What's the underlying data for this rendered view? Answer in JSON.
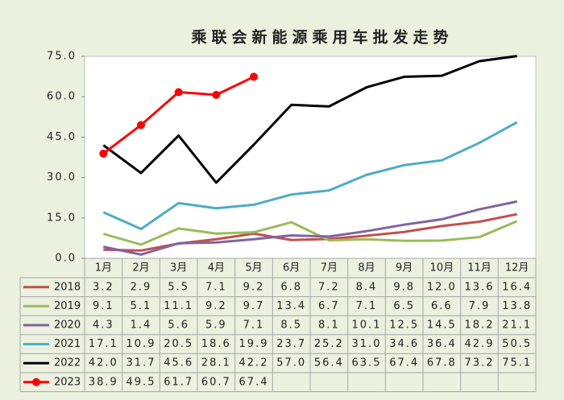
{
  "chart_data": {
    "type": "line",
    "title": "乘联会新能源乘用车批发走势",
    "categories": [
      "1月",
      "2月",
      "3月",
      "4月",
      "5月",
      "6月",
      "7月",
      "8月",
      "9月",
      "10月",
      "11月",
      "12月"
    ],
    "ylim": [
      0,
      75
    ],
    "yticks": [
      {
        "value": 0,
        "label": "0.0"
      },
      {
        "value": 15,
        "label": "15.0"
      },
      {
        "value": 30,
        "label": "30.0"
      },
      {
        "value": 45,
        "label": "45.0"
      },
      {
        "value": 60,
        "label": "60.0"
      },
      {
        "value": 75,
        "label": "75.0"
      }
    ],
    "series": [
      {
        "name": "2018",
        "color": "#c0504d",
        "values": [
          3.2,
          2.9,
          5.5,
          7.1,
          9.2,
          6.8,
          7.2,
          8.4,
          9.8,
          12.0,
          13.6,
          16.4
        ],
        "value_labels": [
          "3.2",
          "2.9",
          "5.5",
          "7.1",
          "9.2",
          "6.8",
          "7.2",
          "8.4",
          "9.8",
          "12.0",
          "13.6",
          "16.4"
        ]
      },
      {
        "name": "2019",
        "color": "#9bbb59",
        "values": [
          9.1,
          5.1,
          11.1,
          9.2,
          9.7,
          13.4,
          6.7,
          7.1,
          6.5,
          6.6,
          7.9,
          13.8
        ],
        "value_labels": [
          "9.1",
          "5.1",
          "11.1",
          "9.2",
          "9.7",
          "13.4",
          "6.7",
          "7.1",
          "6.5",
          "6.6",
          "7.9",
          "13.8"
        ]
      },
      {
        "name": "2020",
        "color": "#8064a2",
        "values": [
          4.3,
          1.4,
          5.6,
          5.9,
          7.1,
          8.5,
          8.1,
          10.1,
          12.5,
          14.5,
          18.2,
          21.1
        ],
        "value_labels": [
          "4.3",
          "1.4",
          "5.6",
          "5.9",
          "7.1",
          "8.5",
          "8.1",
          "10.1",
          "12.5",
          "14.5",
          "18.2",
          "21.1"
        ]
      },
      {
        "name": "2021",
        "color": "#4bacc6",
        "values": [
          17.1,
          10.9,
          20.5,
          18.6,
          19.9,
          23.7,
          25.2,
          31.0,
          34.6,
          36.4,
          42.9,
          50.5
        ],
        "value_labels": [
          "17.1",
          "10.9",
          "20.5",
          "18.6",
          "19.9",
          "23.7",
          "25.2",
          "31.0",
          "34.6",
          "36.4",
          "42.9",
          "50.5"
        ]
      },
      {
        "name": "2022",
        "color": "#000000",
        "values": [
          42.0,
          31.7,
          45.6,
          28.1,
          42.2,
          57.0,
          56.4,
          63.5,
          67.4,
          67.8,
          73.2,
          75.1
        ],
        "value_labels": [
          "42.0",
          "31.7",
          "45.6",
          "28.1",
          "42.2",
          "57.0",
          "56.4",
          "63.5",
          "67.4",
          "67.8",
          "73.2",
          "75.1"
        ]
      },
      {
        "name": "2023",
        "color": "#ff0000",
        "markers": true,
        "values": [
          38.9,
          49.5,
          61.7,
          60.7,
          67.4,
          null,
          null,
          null,
          null,
          null,
          null,
          null
        ],
        "value_labels": [
          "38.9",
          "49.5",
          "61.7",
          "60.7",
          "67.4",
          null,
          null,
          null,
          null,
          null,
          null,
          null
        ]
      }
    ]
  }
}
